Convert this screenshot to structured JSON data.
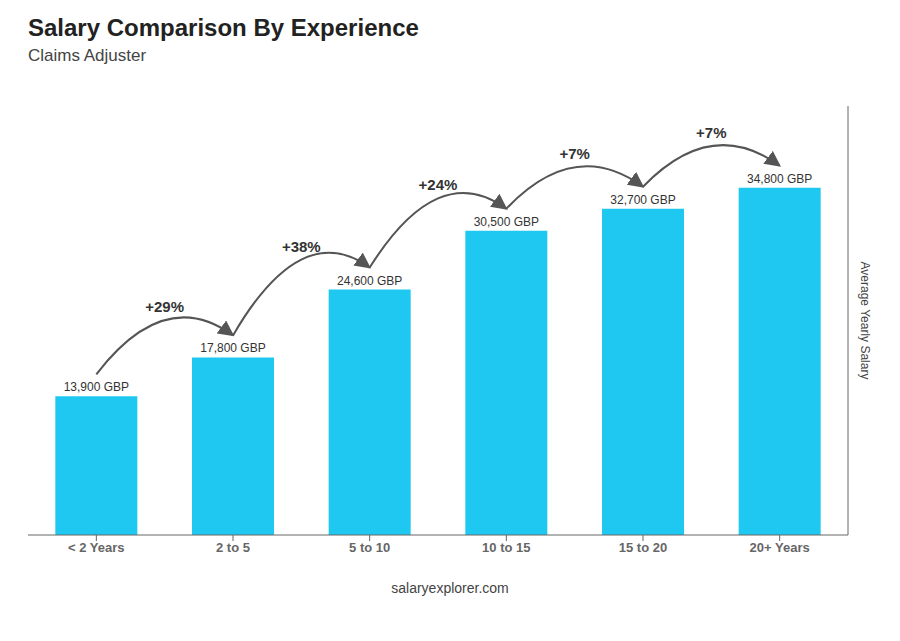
{
  "chart_data": {
    "type": "bar",
    "title": "Salary Comparison By Experience",
    "subtitle": "Claims Adjuster",
    "ylabel": "Average Yearly Salary",
    "categories": [
      "< 2 Years",
      "2 to 5",
      "5 to 10",
      "10 to 15",
      "15 to 20",
      "20+ Years"
    ],
    "values": [
      13900,
      17800,
      24600,
      30500,
      32700,
      34800
    ],
    "value_labels": [
      "13,900 GBP",
      "17,800 GBP",
      "24,600 GBP",
      "30,500 GBP",
      "32,700 GBP",
      "34,800 GBP"
    ],
    "data_labels": true,
    "annotations": [
      "+29%",
      "+38%",
      "+24%",
      "+7%",
      "+7%"
    ],
    "footer": "salaryexplorer.com",
    "color": "#1ec8f0",
    "ylim": [
      0,
      43000
    ],
    "tick_labels": "x",
    "grid": false
  }
}
